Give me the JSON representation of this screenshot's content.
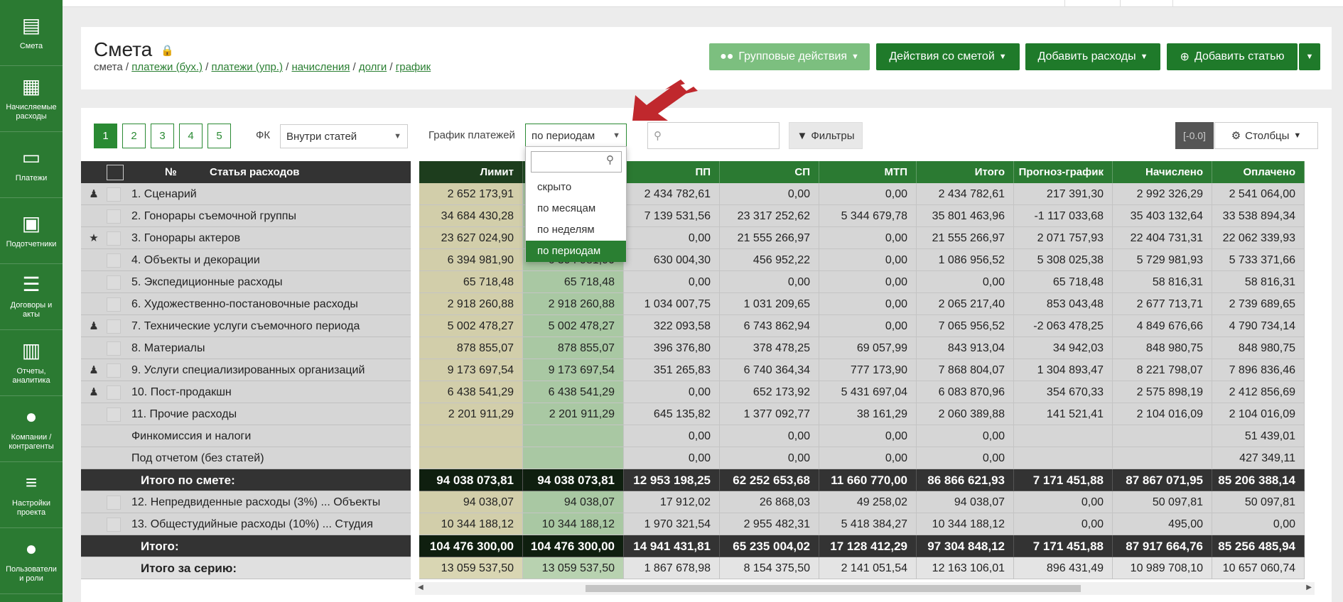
{
  "sidebar": {
    "items": [
      {
        "label": "Смета",
        "icon": "book-icon",
        "glyph": "▤"
      },
      {
        "label": "Начисляемые расходы",
        "icon": "calendar-icon",
        "glyph": "▦"
      },
      {
        "label": "Платежи",
        "icon": "card-icon",
        "glyph": "▭"
      },
      {
        "label": "Подотчетники",
        "icon": "briefcase-icon",
        "glyph": "▣"
      },
      {
        "label": "Договоры и акты",
        "icon": "list-icon",
        "glyph": "☰"
      },
      {
        "label": "Отчеты, аналитика",
        "icon": "bar-chart-icon",
        "glyph": "▥"
      },
      {
        "label": "Компании / контрагенты",
        "icon": "user-icon",
        "glyph": "●"
      },
      {
        "label": "Настройки проекта",
        "icon": "sliders-icon",
        "glyph": "≡"
      },
      {
        "label": "Пользователи и роли",
        "icon": "users-icon",
        "glyph": "●"
      }
    ]
  },
  "header": {
    "title": "Смета",
    "breadcrumb": [
      {
        "text": "смета",
        "link": false
      },
      {
        "text": "платежи (бух.)",
        "link": true
      },
      {
        "text": "платежи (упр.)",
        "link": true
      },
      {
        "text": "начисления",
        "link": true
      },
      {
        "text": "долги",
        "link": true
      },
      {
        "text": "график",
        "link": true
      }
    ],
    "buttons": {
      "group": "Групповые действия",
      "estimate": "Действия со сметой",
      "expenses": "Добавить расходы",
      "article": "Добавить статью"
    }
  },
  "toolbar": {
    "pages": [
      "1",
      "2",
      "3",
      "4",
      "5"
    ],
    "fk_label": "ФК",
    "fk_value": "Внутри статей",
    "schedule_label": "График платежей",
    "schedule_value": "по периодам",
    "search_placeholder": "",
    "filters": "Фильтры",
    "version": "[-0.0]",
    "columns": "Столбцы"
  },
  "dropdown": {
    "options": [
      "скрыто",
      "по месяцам",
      "по неделям",
      "по периодам"
    ],
    "selected": "по периодам"
  },
  "table": {
    "headers": {
      "num": "№",
      "article": "Статья расходов",
      "cols": [
        "Лимит",
        "",
        "ПП",
        "СП",
        "МТП",
        "Итого",
        "Прогноз-график",
        "Начислено",
        "Оплачено"
      ]
    },
    "rows": [
      {
        "kind": "row",
        "icon": "person",
        "name": "1. Сценарий",
        "vals": [
          "2 652 173,91",
          "",
          "2 434 782,61",
          "0,00",
          "0,00",
          "2 434 782,61",
          "217 391,30",
          "2 992 326,29",
          "2 541 064,00"
        ]
      },
      {
        "kind": "row",
        "icon": "",
        "name": "2. Гонорары съемочной группы",
        "vals": [
          "34 684 430,28",
          "",
          "7 139 531,56",
          "23 317 252,62",
          "5 344 679,78",
          "35 801 463,96",
          "-1 117 033,68",
          "35 403 132,64",
          "33 538 894,34"
        ]
      },
      {
        "kind": "row",
        "icon": "star",
        "name": "3. Гонорары актеров",
        "vals": [
          "23 627 024,90",
          "",
          "0,00",
          "21 555 266,97",
          "0,00",
          "21 555 266,97",
          "2 071 757,93",
          "22 404 731,31",
          "22 062 339,93"
        ]
      },
      {
        "kind": "row",
        "icon": "",
        "name": "4. Объекты и декорации",
        "vals": [
          "6 394 981,90",
          "6 394 981,90",
          "630 004,30",
          "456 952,22",
          "0,00",
          "1 086 956,52",
          "5 308 025,38",
          "5 729 981,93",
          "5 733 371,66"
        ]
      },
      {
        "kind": "row",
        "icon": "",
        "name": "5. Экспедиционные расходы",
        "vals": [
          "65 718,48",
          "65 718,48",
          "0,00",
          "0,00",
          "0,00",
          "0,00",
          "65 718,48",
          "58 816,31",
          "58 816,31"
        ]
      },
      {
        "kind": "row",
        "icon": "",
        "name": "6. Художественно-постановочные расходы",
        "vals": [
          "2 918 260,88",
          "2 918 260,88",
          "1 034 007,75",
          "1 031 209,65",
          "0,00",
          "2 065 217,40",
          "853 043,48",
          "2 677 713,71",
          "2 739 689,65"
        ]
      },
      {
        "kind": "row",
        "icon": "person",
        "name": "7. Технические услуги съемочного периода",
        "vals": [
          "5 002 478,27",
          "5 002 478,27",
          "322 093,58",
          "6 743 862,94",
          "0,00",
          "7 065 956,52",
          "-2 063 478,25",
          "4 849 676,66",
          "4 790 734,14"
        ]
      },
      {
        "kind": "row",
        "icon": "",
        "name": "8. Материалы",
        "vals": [
          "878 855,07",
          "878 855,07",
          "396 376,80",
          "378 478,25",
          "69 057,99",
          "843 913,04",
          "34 942,03",
          "848 980,75",
          "848 980,75"
        ]
      },
      {
        "kind": "row",
        "icon": "person",
        "name": "9. Услуги специализированных организаций",
        "vals": [
          "9 173 697,54",
          "9 173 697,54",
          "351 265,83",
          "6 740 364,34",
          "777 173,90",
          "7 868 804,07",
          "1 304 893,47",
          "8 221 798,07",
          "7 896 836,46"
        ]
      },
      {
        "kind": "row",
        "icon": "person",
        "name": "10. Пост-продакшн",
        "vals": [
          "6 438 541,29",
          "6 438 541,29",
          "0,00",
          "652 173,92",
          "5 431 697,04",
          "6 083 870,96",
          "354 670,33",
          "2 575 898,19",
          "2 412 856,69"
        ]
      },
      {
        "kind": "row",
        "icon": "",
        "name": "11. Прочие расходы",
        "vals": [
          "2 201 911,29",
          "2 201 911,29",
          "645 135,82",
          "1 377 092,77",
          "38 161,29",
          "2 060 389,88",
          "141 521,41",
          "2 104 016,09",
          "2 104 016,09"
        ]
      },
      {
        "kind": "sub",
        "icon": "",
        "name": "Финкомиссия и налоги",
        "vals": [
          "",
          "",
          "0,00",
          "0,00",
          "0,00",
          "0,00",
          "",
          "",
          "51 439,01"
        ]
      },
      {
        "kind": "sub",
        "icon": "",
        "name": "Под отчетом (без статей)",
        "vals": [
          "",
          "",
          "0,00",
          "0,00",
          "0,00",
          "0,00",
          "",
          "",
          "427 349,11"
        ]
      },
      {
        "kind": "total",
        "icon": "",
        "name": "Итого по смете:",
        "vals": [
          "94 038 073,81",
          "94 038 073,81",
          "12 953 198,25",
          "62 252 653,68",
          "11 660 770,00",
          "86 866 621,93",
          "7 171 451,88",
          "87 867 071,95",
          "85 206 388,14"
        ]
      },
      {
        "kind": "row",
        "icon": "",
        "name": "12. Непредвиденные расходы (3%) ... Объекты",
        "vals": [
          "94 038,07",
          "94 038,07",
          "17 912,02",
          "26 868,03",
          "49 258,02",
          "94 038,07",
          "0,00",
          "50 097,81",
          "50 097,81"
        ]
      },
      {
        "kind": "row",
        "icon": "",
        "name": "13. Общестудийные расходы (10%) ... Студия",
        "vals": [
          "10 344 188,12",
          "10 344 188,12",
          "1 970 321,54",
          "2 955 482,31",
          "5 418 384,27",
          "10 344 188,12",
          "0,00",
          "495,00",
          "0,00"
        ]
      },
      {
        "kind": "total",
        "icon": "",
        "name": "Итого:",
        "vals": [
          "104 476 300,00",
          "104 476 300,00",
          "14 941 431,81",
          "65 235 004,02",
          "17 128 412,29",
          "97 304 848,12",
          "7 171 451,88",
          "87 917 664,76",
          "85 256 485,94"
        ]
      },
      {
        "kind": "series",
        "icon": "",
        "name": "Итого за серию:",
        "vals": [
          "13 059 537,50",
          "13 059 537,50",
          "1 867 678,98",
          "8 154 375,50",
          "2 141 051,54",
          "12 163 106,01",
          "896 431,49",
          "10 989 708,10",
          "10 657 060,74"
        ]
      }
    ]
  },
  "colors": {
    "brand": "#2b7a32",
    "accent": "#1f7a2a",
    "header_row": "#333333",
    "arrow": "#c0282d"
  }
}
